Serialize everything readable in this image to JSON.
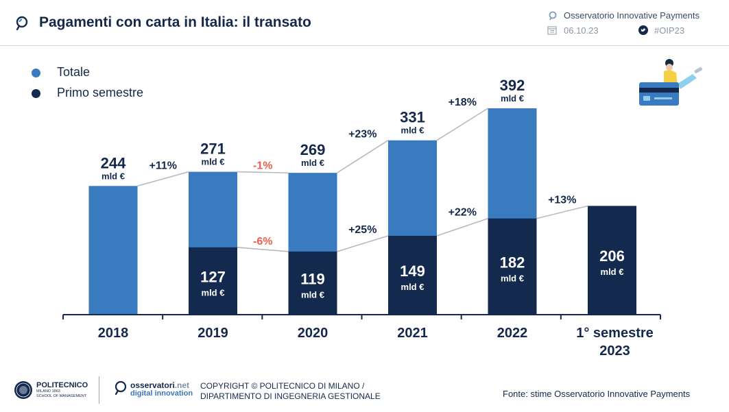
{
  "header": {
    "title": "Pagamenti con carta in Italia: il transato",
    "organization": "Osservatorio Innovative Payments",
    "date": "06.10.23",
    "hashtag": "#OIP23"
  },
  "legend": [
    {
      "label": "Totale",
      "color": "#3a7abf"
    },
    {
      "label": "Primo semestre",
      "color": "#132a4e"
    }
  ],
  "chart_data": {
    "type": "bar",
    "title": "",
    "xlabel": "",
    "ylabel": "",
    "ylim": [
      0,
      400
    ],
    "grid": false,
    "legend_position": "top-left",
    "unit_label": "mld €",
    "categories": [
      "2018",
      "2019",
      "2020",
      "2021",
      "2022",
      "1° semestre 2023"
    ],
    "series": [
      {
        "name": "Totale",
        "color": "#3a7abf",
        "values": [
          244,
          271,
          269,
          331,
          392,
          null
        ]
      },
      {
        "name": "Primo semestre",
        "color": "#132a4e",
        "values": [
          null,
          127,
          119,
          149,
          182,
          206
        ]
      }
    ],
    "growth_totale": [
      {
        "from": "2018",
        "to": "2019",
        "label": "+11%",
        "color": "#14284b"
      },
      {
        "from": "2019",
        "to": "2020",
        "label": "-1%",
        "color": "#e8614e"
      },
      {
        "from": "2020",
        "to": "2021",
        "label": "+23%",
        "color": "#14284b"
      },
      {
        "from": "2021",
        "to": "2022",
        "label": "+18%",
        "color": "#14284b"
      }
    ],
    "growth_semestre": [
      {
        "from": "2019",
        "to": "2020",
        "label": "-6%",
        "color": "#e8614e"
      },
      {
        "from": "2020",
        "to": "2021",
        "label": "+25%",
        "color": "#14284b"
      },
      {
        "from": "2021",
        "to": "2022",
        "label": "+22%",
        "color": "#14284b"
      },
      {
        "from": "2022",
        "to": "1° semestre 2023",
        "label": "+13%",
        "color": "#14284b"
      }
    ]
  },
  "footer": {
    "polimi_name": "POLITECNICO",
    "polimi_city": "MILANO 1863",
    "polimi_school": "SCHOOL OF MANAGEMENT",
    "osservatori_name": "osservatori",
    "osservatori_suffix": ".net",
    "osservatori_sub": "digital innovation",
    "copyright": "COPYRIGHT © POLITECNICO DI MILANO / DIPARTIMENTO DI INGEGNERIA GESTIONALE",
    "source": "Fonte: stime Osservatorio Innovative Payments"
  }
}
